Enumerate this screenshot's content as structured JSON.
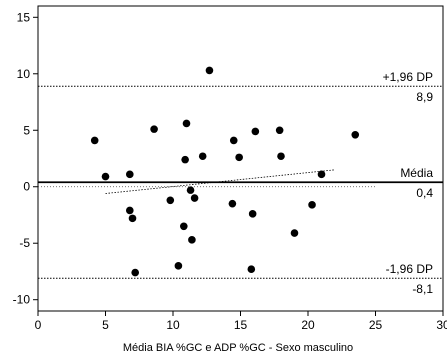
{
  "chart_data": {
    "type": "scatter",
    "title": "",
    "xlabel": "Média BIA %GC e ADP %GC - Sexo masculino",
    "ylabel": "",
    "xlim": [
      0,
      30
    ],
    "ylim": [
      -11,
      16
    ],
    "xticks": [
      0,
      5,
      10,
      15,
      20,
      25,
      30
    ],
    "yticks": [
      -10,
      -5,
      0,
      5,
      10,
      15
    ],
    "grid": false,
    "points": [
      {
        "x": 4.2,
        "y": 4.1
      },
      {
        "x": 5.0,
        "y": 0.9
      },
      {
        "x": 6.8,
        "y": 1.1
      },
      {
        "x": 6.8,
        "y": -2.1
      },
      {
        "x": 7.0,
        "y": -2.8
      },
      {
        "x": 7.2,
        "y": -7.6
      },
      {
        "x": 8.6,
        "y": 5.1
      },
      {
        "x": 9.8,
        "y": -1.2
      },
      {
        "x": 10.4,
        "y": -7.0
      },
      {
        "x": 10.8,
        "y": -3.5
      },
      {
        "x": 10.9,
        "y": 2.4
      },
      {
        "x": 11.0,
        "y": 5.6
      },
      {
        "x": 11.3,
        "y": -0.3
      },
      {
        "x": 11.4,
        "y": -4.7
      },
      {
        "x": 11.6,
        "y": -1.0
      },
      {
        "x": 12.2,
        "y": 2.7
      },
      {
        "x": 12.7,
        "y": 10.3
      },
      {
        "x": 14.4,
        "y": -1.5
      },
      {
        "x": 14.5,
        "y": 4.1
      },
      {
        "x": 14.9,
        "y": 2.6
      },
      {
        "x": 15.8,
        "y": -7.3
      },
      {
        "x": 15.9,
        "y": -2.4
      },
      {
        "x": 16.1,
        "y": 4.9
      },
      {
        "x": 17.9,
        "y": 5.0
      },
      {
        "x": 18.0,
        "y": 2.7
      },
      {
        "x": 19.0,
        "y": -4.1
      },
      {
        "x": 20.3,
        "y": -1.6
      },
      {
        "x": 21.0,
        "y": 1.1
      },
      {
        "x": 23.5,
        "y": 4.6
      }
    ],
    "lines": [
      {
        "name": "upper_loa",
        "label_top": "+1,96 DP",
        "label_bottom": "8,9",
        "y": 8.9,
        "style": "dotted"
      },
      {
        "name": "mean",
        "label_top": "Média",
        "label_bottom": "0,4",
        "y": 0.4,
        "style": "solid"
      },
      {
        "name": "lower_loa",
        "label_top": "-1,96 DP",
        "label_bottom": "-8,1",
        "y": -8.1,
        "style": "dotted"
      },
      {
        "name": "zero",
        "y": 0.0,
        "x_range": [
          0,
          25
        ],
        "style": "thin-dotted"
      }
    ],
    "trend": {
      "x": [
        5,
        22
      ],
      "y": [
        -0.6,
        1.5
      ],
      "style": "dotted"
    }
  }
}
